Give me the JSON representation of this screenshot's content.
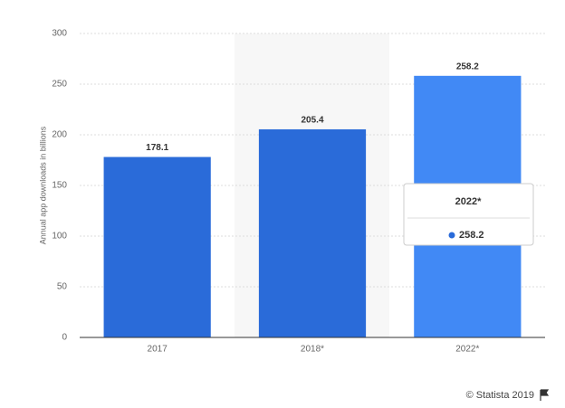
{
  "chart_data": {
    "type": "bar",
    "y_label": "Annual app downloads in billions",
    "categories": [
      "2017",
      "2018*",
      "2022*"
    ],
    "values": [
      178.1,
      205.4,
      258.2
    ],
    "colors": [
      "#2a6bd9",
      "#2a6bd9",
      "#4189f5"
    ],
    "ylim": [
      0,
      300
    ],
    "yticks": [
      0,
      50,
      100,
      150,
      200,
      250,
      300
    ],
    "grid": true,
    "credit": "© Statista 2019"
  }
}
